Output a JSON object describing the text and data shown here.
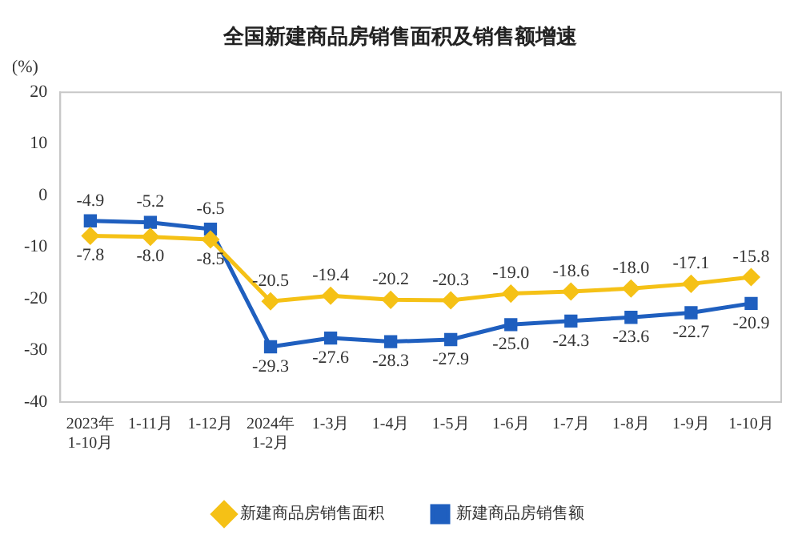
{
  "chart_data": {
    "type": "line",
    "title": "全国新建商品房销售面积及销售额增速",
    "ylabel": "(%)",
    "categories": [
      "2023年\n1-10月",
      "1-11月",
      "1-12月",
      "2024年\n1-2月",
      "1-3月",
      "1-4月",
      "1-5月",
      "1-6月",
      "1-7月",
      "1-8月",
      "1-9月",
      "1-10月"
    ],
    "series": [
      {
        "name": "新建商品房销售面积",
        "color": "#f5c116",
        "marker": "diamond",
        "values": [
          -7.8,
          -8.0,
          -8.5,
          -20.5,
          -19.4,
          -20.2,
          -20.3,
          -19.0,
          -18.6,
          -18.0,
          -17.1,
          -15.8
        ],
        "value_labels": [
          "-7.8",
          "-8.0",
          "-8.5",
          "-20.5",
          "-19.4",
          "-20.2",
          "-20.3",
          "-19.0",
          "-18.6",
          "-18.0",
          "-17.1",
          "-15.8"
        ]
      },
      {
        "name": "新建商品房销售额",
        "color": "#1f5fbf",
        "marker": "square",
        "values": [
          -4.9,
          -5.2,
          -6.5,
          -29.3,
          -27.6,
          -28.3,
          -27.9,
          -25.0,
          -24.3,
          -23.6,
          -22.7,
          -20.9
        ],
        "value_labels": [
          "-4.9",
          "-5.2",
          "-6.5",
          "-29.3",
          "-27.6",
          "-28.3",
          "-27.9",
          "-25.0",
          "-24.3",
          "-23.6",
          "-22.7",
          "-20.9"
        ]
      }
    ],
    "ylim": [
      -40,
      20
    ],
    "yticks": [
      -40,
      -30,
      -20,
      -10,
      0,
      10,
      20
    ],
    "grid": false,
    "legend": "bottom",
    "line_style": "solid"
  }
}
